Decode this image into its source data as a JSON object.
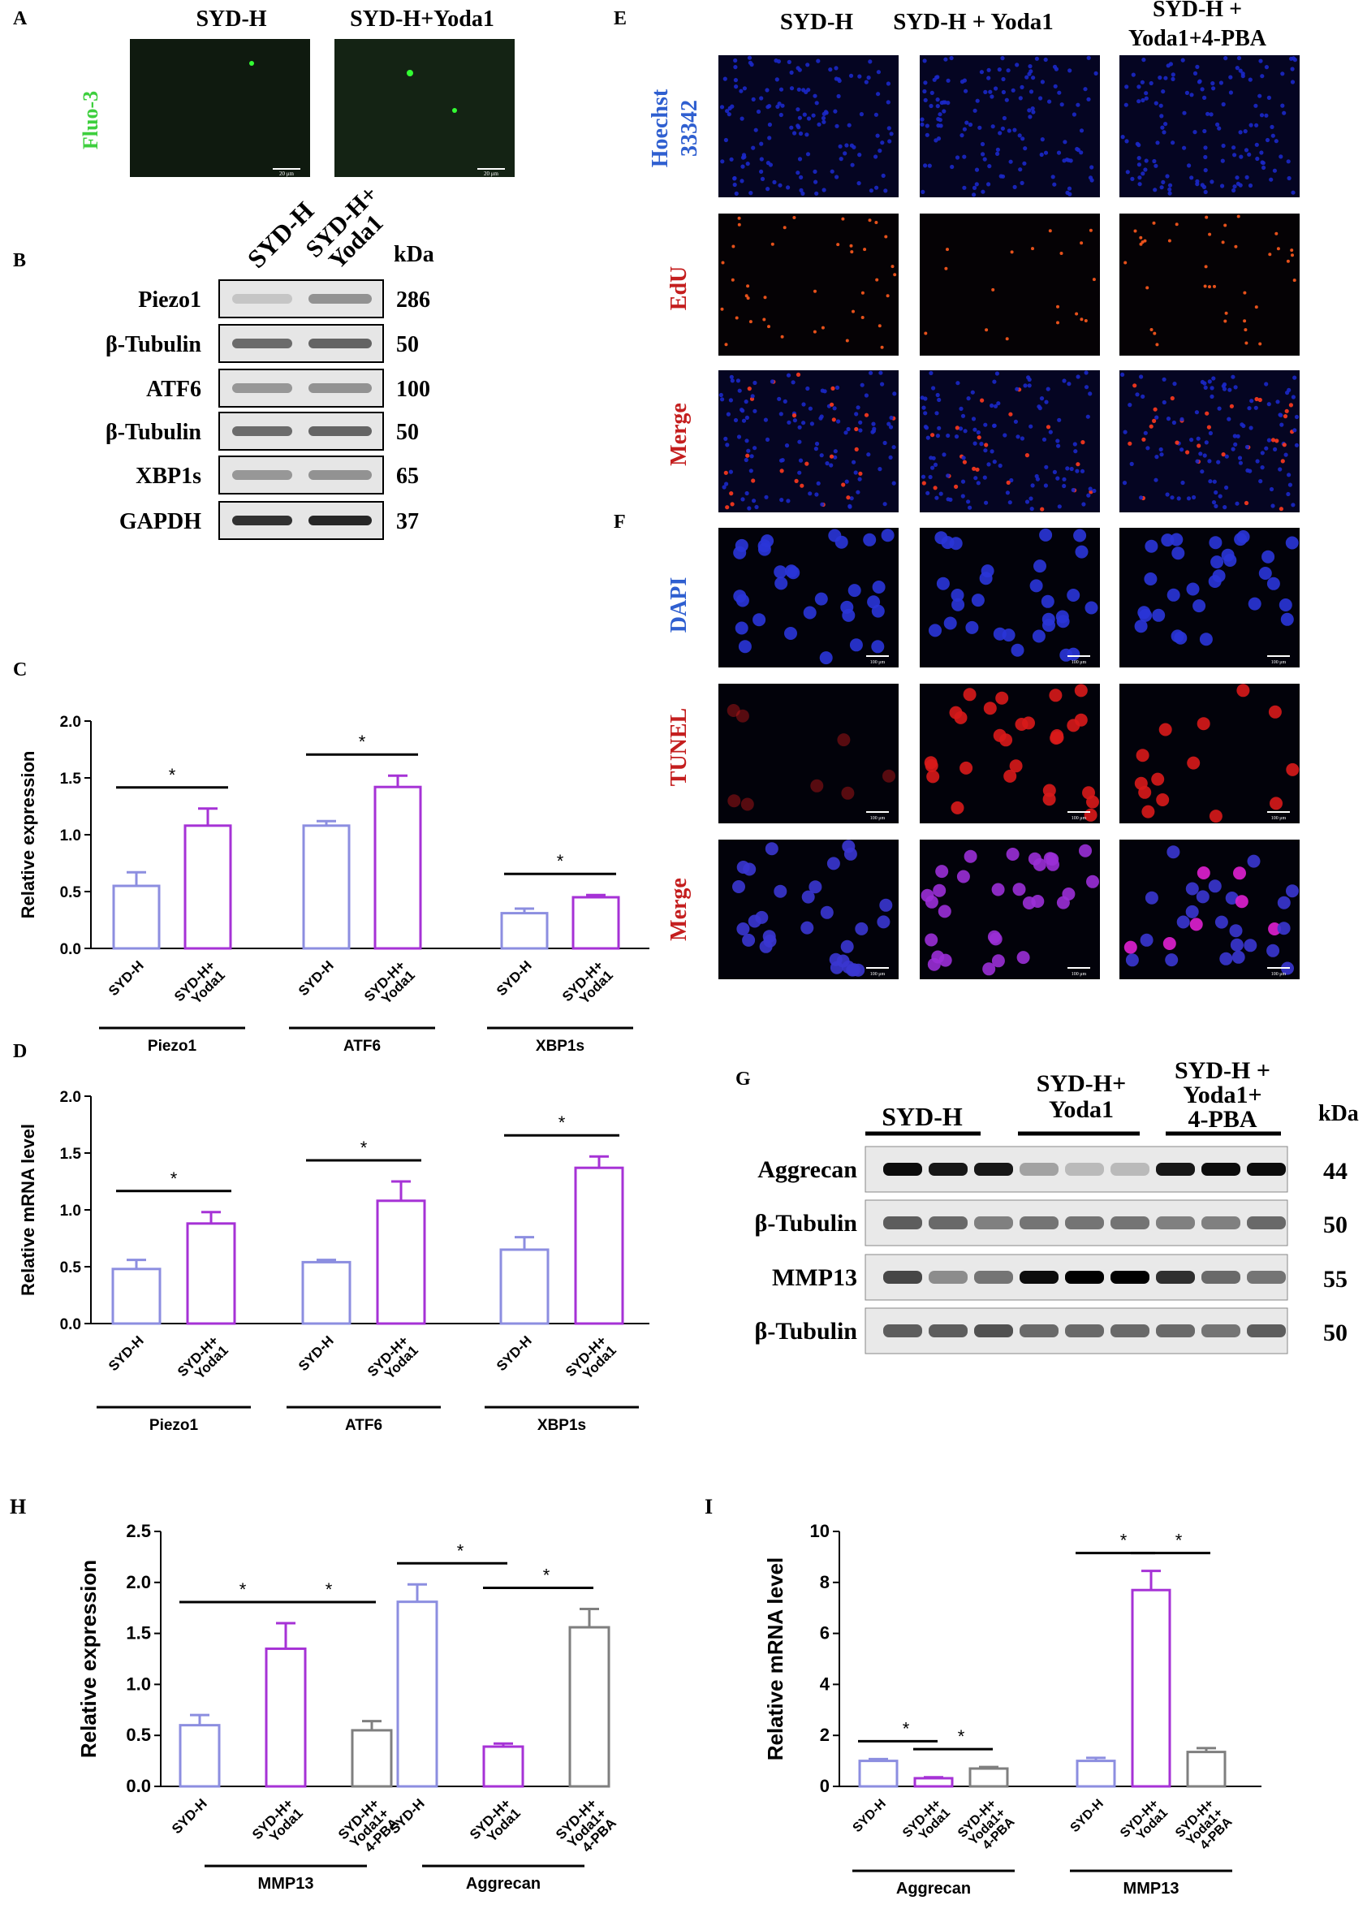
{
  "panel_letters": {
    "A": "A",
    "B": "B",
    "C": "C",
    "D": "D",
    "E": "E",
    "F": "F",
    "G": "G",
    "H": "H",
    "I": "I"
  },
  "panel_a": {
    "columns": [
      "SYD-H",
      "SYD-H+Yoda1"
    ],
    "row_label": "Fluo-3",
    "scale_bar": "20 μm"
  },
  "panel_b": {
    "columns": [
      "SYD-H",
      "SYD-H+ Yoda1"
    ],
    "unit": "kDa",
    "rows": [
      {
        "label": "Piezo1",
        "kda": "286"
      },
      {
        "label": "β-Tubulin",
        "kda": "50"
      },
      {
        "label": "ATF6",
        "kda": "100"
      },
      {
        "label": "β-Tubulin",
        "kda": "50"
      },
      {
        "label": "XBP1s",
        "kda": "65"
      },
      {
        "label": "GAPDH",
        "kda": "37"
      }
    ]
  },
  "panel_e": {
    "columns": [
      "SYD-H",
      "SYD-H + Yoda1",
      "SYD-H + Yoda1+4-PBA"
    ],
    "rows": [
      "Hoechst 33342",
      "EdU",
      "Merge"
    ]
  },
  "panel_f": {
    "rows": [
      "DAPI",
      "TUNEL",
      "Merge"
    ],
    "scale_bar": "100 μm"
  },
  "panel_g": {
    "columns": [
      "SYD-H",
      "SYD-H+ Yoda1",
      "SYD-H + Yoda1+ 4-PBA"
    ],
    "unit": "kDa",
    "rows": [
      {
        "label": "Aggrecan",
        "kda": "44"
      },
      {
        "label": "β-Tubulin",
        "kda": "50"
      },
      {
        "label": "MMP13",
        "kda": "55"
      },
      {
        "label": "β-Tubulin",
        "kda": "50"
      }
    ]
  },
  "colors": {
    "syd_h": "#8c8ee0",
    "yoda1": "#a632d6",
    "pba": "#7f7f7f",
    "blue_text": "#2f5fd0",
    "red_text": "#c41e1e",
    "green_text": "#3ecf3e"
  },
  "chart_data": [
    {
      "panel": "C",
      "type": "bar",
      "ylabel": "Relative expression",
      "ylim": [
        0,
        2.0
      ],
      "yticks": [
        "0.0",
        "0.5",
        "1.0",
        "1.5",
        "2.0"
      ],
      "groups": [
        {
          "name": "Piezo1",
          "bars": [
            {
              "label": "SYD-H",
              "value": 0.55,
              "err": 0.12
            },
            {
              "label": "SYD-H+ Yoda1",
              "value": 1.08,
              "err": 0.15
            }
          ],
          "sig": [
            "*"
          ]
        },
        {
          "name": "ATF6",
          "bars": [
            {
              "label": "SYD-H",
              "value": 1.08,
              "err": 0.04
            },
            {
              "label": "SYD-H+ Yoda1",
              "value": 1.42,
              "err": 0.1
            }
          ],
          "sig": [
            "*"
          ]
        },
        {
          "name": "XBP1s",
          "bars": [
            {
              "label": "SYD-H",
              "value": 0.31,
              "err": 0.04
            },
            {
              "label": "SYD-H+ Yoda1",
              "value": 0.45,
              "err": 0.02
            }
          ],
          "sig": [
            "*"
          ]
        }
      ]
    },
    {
      "panel": "D",
      "type": "bar",
      "ylabel": "Relative mRNA level",
      "ylim": [
        0,
        2.0
      ],
      "yticks": [
        "0.0",
        "0.5",
        "1.0",
        "1.5",
        "2.0"
      ],
      "groups": [
        {
          "name": "Piezo1",
          "bars": [
            {
              "label": "SYD-H",
              "value": 0.48,
              "err": 0.08
            },
            {
              "label": "SYD-H+ Yoda1",
              "value": 0.88,
              "err": 0.1
            }
          ],
          "sig": [
            "*"
          ]
        },
        {
          "name": "ATF6",
          "bars": [
            {
              "label": "SYD-H",
              "value": 0.54,
              "err": 0.02
            },
            {
              "label": "SYD-H+ Yoda1",
              "value": 1.08,
              "err": 0.17
            }
          ],
          "sig": [
            "*"
          ]
        },
        {
          "name": "XBP1s",
          "bars": [
            {
              "label": "SYD-H",
              "value": 0.65,
              "err": 0.11
            },
            {
              "label": "SYD-H+ Yoda1",
              "value": 1.37,
              "err": 0.1
            }
          ],
          "sig": [
            "*"
          ]
        }
      ]
    },
    {
      "panel": "H",
      "type": "bar",
      "ylabel": "Relative expression",
      "ylim": [
        0,
        2.5
      ],
      "yticks": [
        "0.0",
        "0.5",
        "1.0",
        "1.5",
        "2.0",
        "2.5"
      ],
      "groups": [
        {
          "name": "MMP13",
          "bars": [
            {
              "label": "SYD-H",
              "value": 0.6,
              "err": 0.1
            },
            {
              "label": "SYD-H+ Yoda1",
              "value": 1.35,
              "err": 0.25
            },
            {
              "label": "SYD-H+ Yoda1+ 4-PBA",
              "value": 0.55,
              "err": 0.09
            }
          ],
          "sig": [
            "*",
            "*"
          ]
        },
        {
          "name": "Aggrecan",
          "bars": [
            {
              "label": "SYD-H",
              "value": 1.81,
              "err": 0.17
            },
            {
              "label": "SYD-H+ Yoda1",
              "value": 0.39,
              "err": 0.03
            },
            {
              "label": "SYD-H+ Yoda1+ 4-PBA",
              "value": 1.56,
              "err": 0.18
            }
          ],
          "sig": [
            "*",
            "*"
          ]
        }
      ]
    },
    {
      "panel": "I",
      "type": "bar",
      "ylabel": "Relative mRNA level",
      "ylim": [
        0,
        10
      ],
      "yticks": [
        "0",
        "2",
        "4",
        "6",
        "8",
        "10"
      ],
      "groups": [
        {
          "name": "Aggrecan",
          "bars": [
            {
              "label": "SYD-H",
              "value": 1.0,
              "err": 0.07
            },
            {
              "label": "SYD-H+ Yoda1",
              "value": 0.32,
              "err": 0.04
            },
            {
              "label": "SYD-H+ Yoda1+ 4-PBA",
              "value": 0.7,
              "err": 0.06
            }
          ],
          "sig": [
            "*",
            "*"
          ]
        },
        {
          "name": "MMP13",
          "bars": [
            {
              "label": "SYD-H",
              "value": 1.0,
              "err": 0.12
            },
            {
              "label": "SYD-H+ Yoda1",
              "value": 7.7,
              "err": 0.75
            },
            {
              "label": "SYD-H+ Yoda1+ 4-PBA",
              "value": 1.35,
              "err": 0.15
            }
          ],
          "sig": [
            "*",
            "*"
          ]
        }
      ]
    }
  ]
}
